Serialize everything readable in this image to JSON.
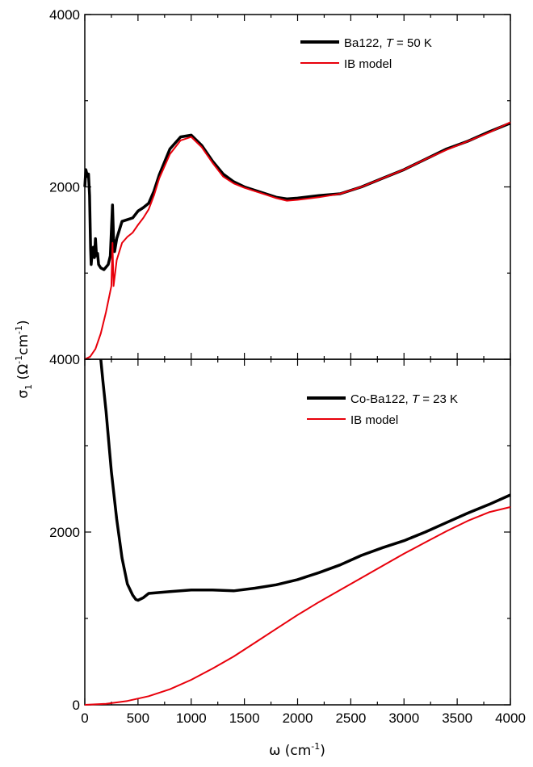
{
  "chart_data": [
    {
      "type": "line",
      "panel": "top",
      "xlim": [
        0,
        4000
      ],
      "ylim": [
        0,
        4000
      ],
      "y_tick_labels": [
        "4000",
        "2000"
      ],
      "legend_placement": "top-right",
      "grid": false,
      "series": [
        {
          "name": "Ba122, T = 50 K",
          "legend": {
            "prefix": "Ba122, ",
            "var": "T",
            "suffix": " = 50 K"
          },
          "color": "#000000",
          "x": [
            0,
            10,
            25,
            35,
            45,
            55,
            60,
            70,
            80,
            90,
            100,
            110,
            120,
            130,
            140,
            150,
            180,
            220,
            240,
            260,
            270,
            280,
            300,
            350,
            400,
            450,
            500,
            550,
            600,
            650,
            700,
            800,
            900,
            1000,
            1100,
            1200,
            1300,
            1400,
            1500,
            1600,
            1700,
            1800,
            1900,
            2000,
            2200,
            2400,
            2600,
            2800,
            3000,
            3200,
            3400,
            3600,
            3800,
            4000
          ],
          "y": [
            2000,
            2200,
            2120,
            2150,
            1900,
            1280,
            1100,
            1250,
            1300,
            1180,
            1400,
            1200,
            1230,
            1100,
            1080,
            1060,
            1040,
            1100,
            1200,
            1790,
            1400,
            1250,
            1400,
            1600,
            1620,
            1640,
            1720,
            1760,
            1810,
            1950,
            2140,
            2440,
            2580,
            2600,
            2480,
            2300,
            2150,
            2060,
            2000,
            1960,
            1920,
            1880,
            1860,
            1870,
            1900,
            1920,
            2000,
            2100,
            2200,
            2320,
            2440,
            2530,
            2640,
            2740
          ]
        },
        {
          "name": "IB model",
          "color": "#e8000b",
          "x": [
            0,
            50,
            100,
            150,
            200,
            250,
            260,
            270,
            280,
            300,
            350,
            400,
            450,
            500,
            550,
            600,
            650,
            700,
            800,
            900,
            1000,
            1100,
            1200,
            1300,
            1400,
            1500,
            1600,
            1700,
            1800,
            1900,
            2000,
            2200,
            2400,
            2600,
            2800,
            3000,
            3200,
            3400,
            3600,
            3800,
            4000
          ],
          "y": [
            0,
            30,
            120,
            300,
            550,
            850,
            1350,
            850,
            950,
            1150,
            1350,
            1420,
            1470,
            1560,
            1640,
            1740,
            1900,
            2100,
            2380,
            2540,
            2580,
            2460,
            2280,
            2120,
            2040,
            1990,
            1950,
            1910,
            1870,
            1840,
            1850,
            1880,
            1920,
            2000,
            2100,
            2200,
            2320,
            2430,
            2530,
            2630,
            2750
          ]
        }
      ]
    },
    {
      "type": "line",
      "panel": "bottom",
      "xlim": [
        0,
        4000
      ],
      "ylim": [
        0,
        4000
      ],
      "y_tick_labels": [
        "4000",
        "2000",
        "0"
      ],
      "x_tick_labels": [
        "0",
        "500",
        "1000",
        "1500",
        "2000",
        "2500",
        "3000",
        "3500",
        "4000"
      ],
      "xlabel": {
        "symbol": "ω",
        "unit": " (cm",
        "exp": "-1",
        "close": ")"
      },
      "ylabel": {
        "symbol": "σ",
        "sub": "1",
        "unit": " (Ω",
        "exp1": "-1",
        "mid": "cm",
        "exp2": "-1",
        "close": ")"
      },
      "legend_placement": "top-right",
      "grid": false,
      "series": [
        {
          "name": "Co-Ba122, T = 23 K",
          "legend": {
            "prefix": "Co-Ba122, ",
            "var": "T",
            "suffix": " = 23 K"
          },
          "color": "#000000",
          "x": [
            150,
            170,
            200,
            250,
            300,
            350,
            400,
            450,
            480,
            500,
            550,
            600,
            700,
            800,
            1000,
            1200,
            1400,
            1600,
            1800,
            2000,
            2200,
            2400,
            2600,
            2800,
            3000,
            3200,
            3400,
            3600,
            3800,
            4000
          ],
          "y": [
            4000,
            3750,
            3400,
            2700,
            2150,
            1700,
            1400,
            1270,
            1220,
            1210,
            1240,
            1290,
            1300,
            1310,
            1330,
            1330,
            1320,
            1350,
            1390,
            1450,
            1530,
            1620,
            1730,
            1820,
            1900,
            2000,
            2110,
            2220,
            2320,
            2430
          ]
        },
        {
          "name": "IB model",
          "color": "#e8000b",
          "x": [
            0,
            200,
            400,
            600,
            800,
            1000,
            1200,
            1400,
            1600,
            1800,
            2000,
            2200,
            2400,
            2600,
            2800,
            3000,
            3200,
            3400,
            3600,
            3800,
            4000
          ],
          "y": [
            0,
            12,
            45,
            100,
            180,
            290,
            420,
            560,
            720,
            880,
            1040,
            1190,
            1330,
            1470,
            1610,
            1750,
            1880,
            2010,
            2130,
            2230,
            2290
          ]
        }
      ]
    }
  ]
}
